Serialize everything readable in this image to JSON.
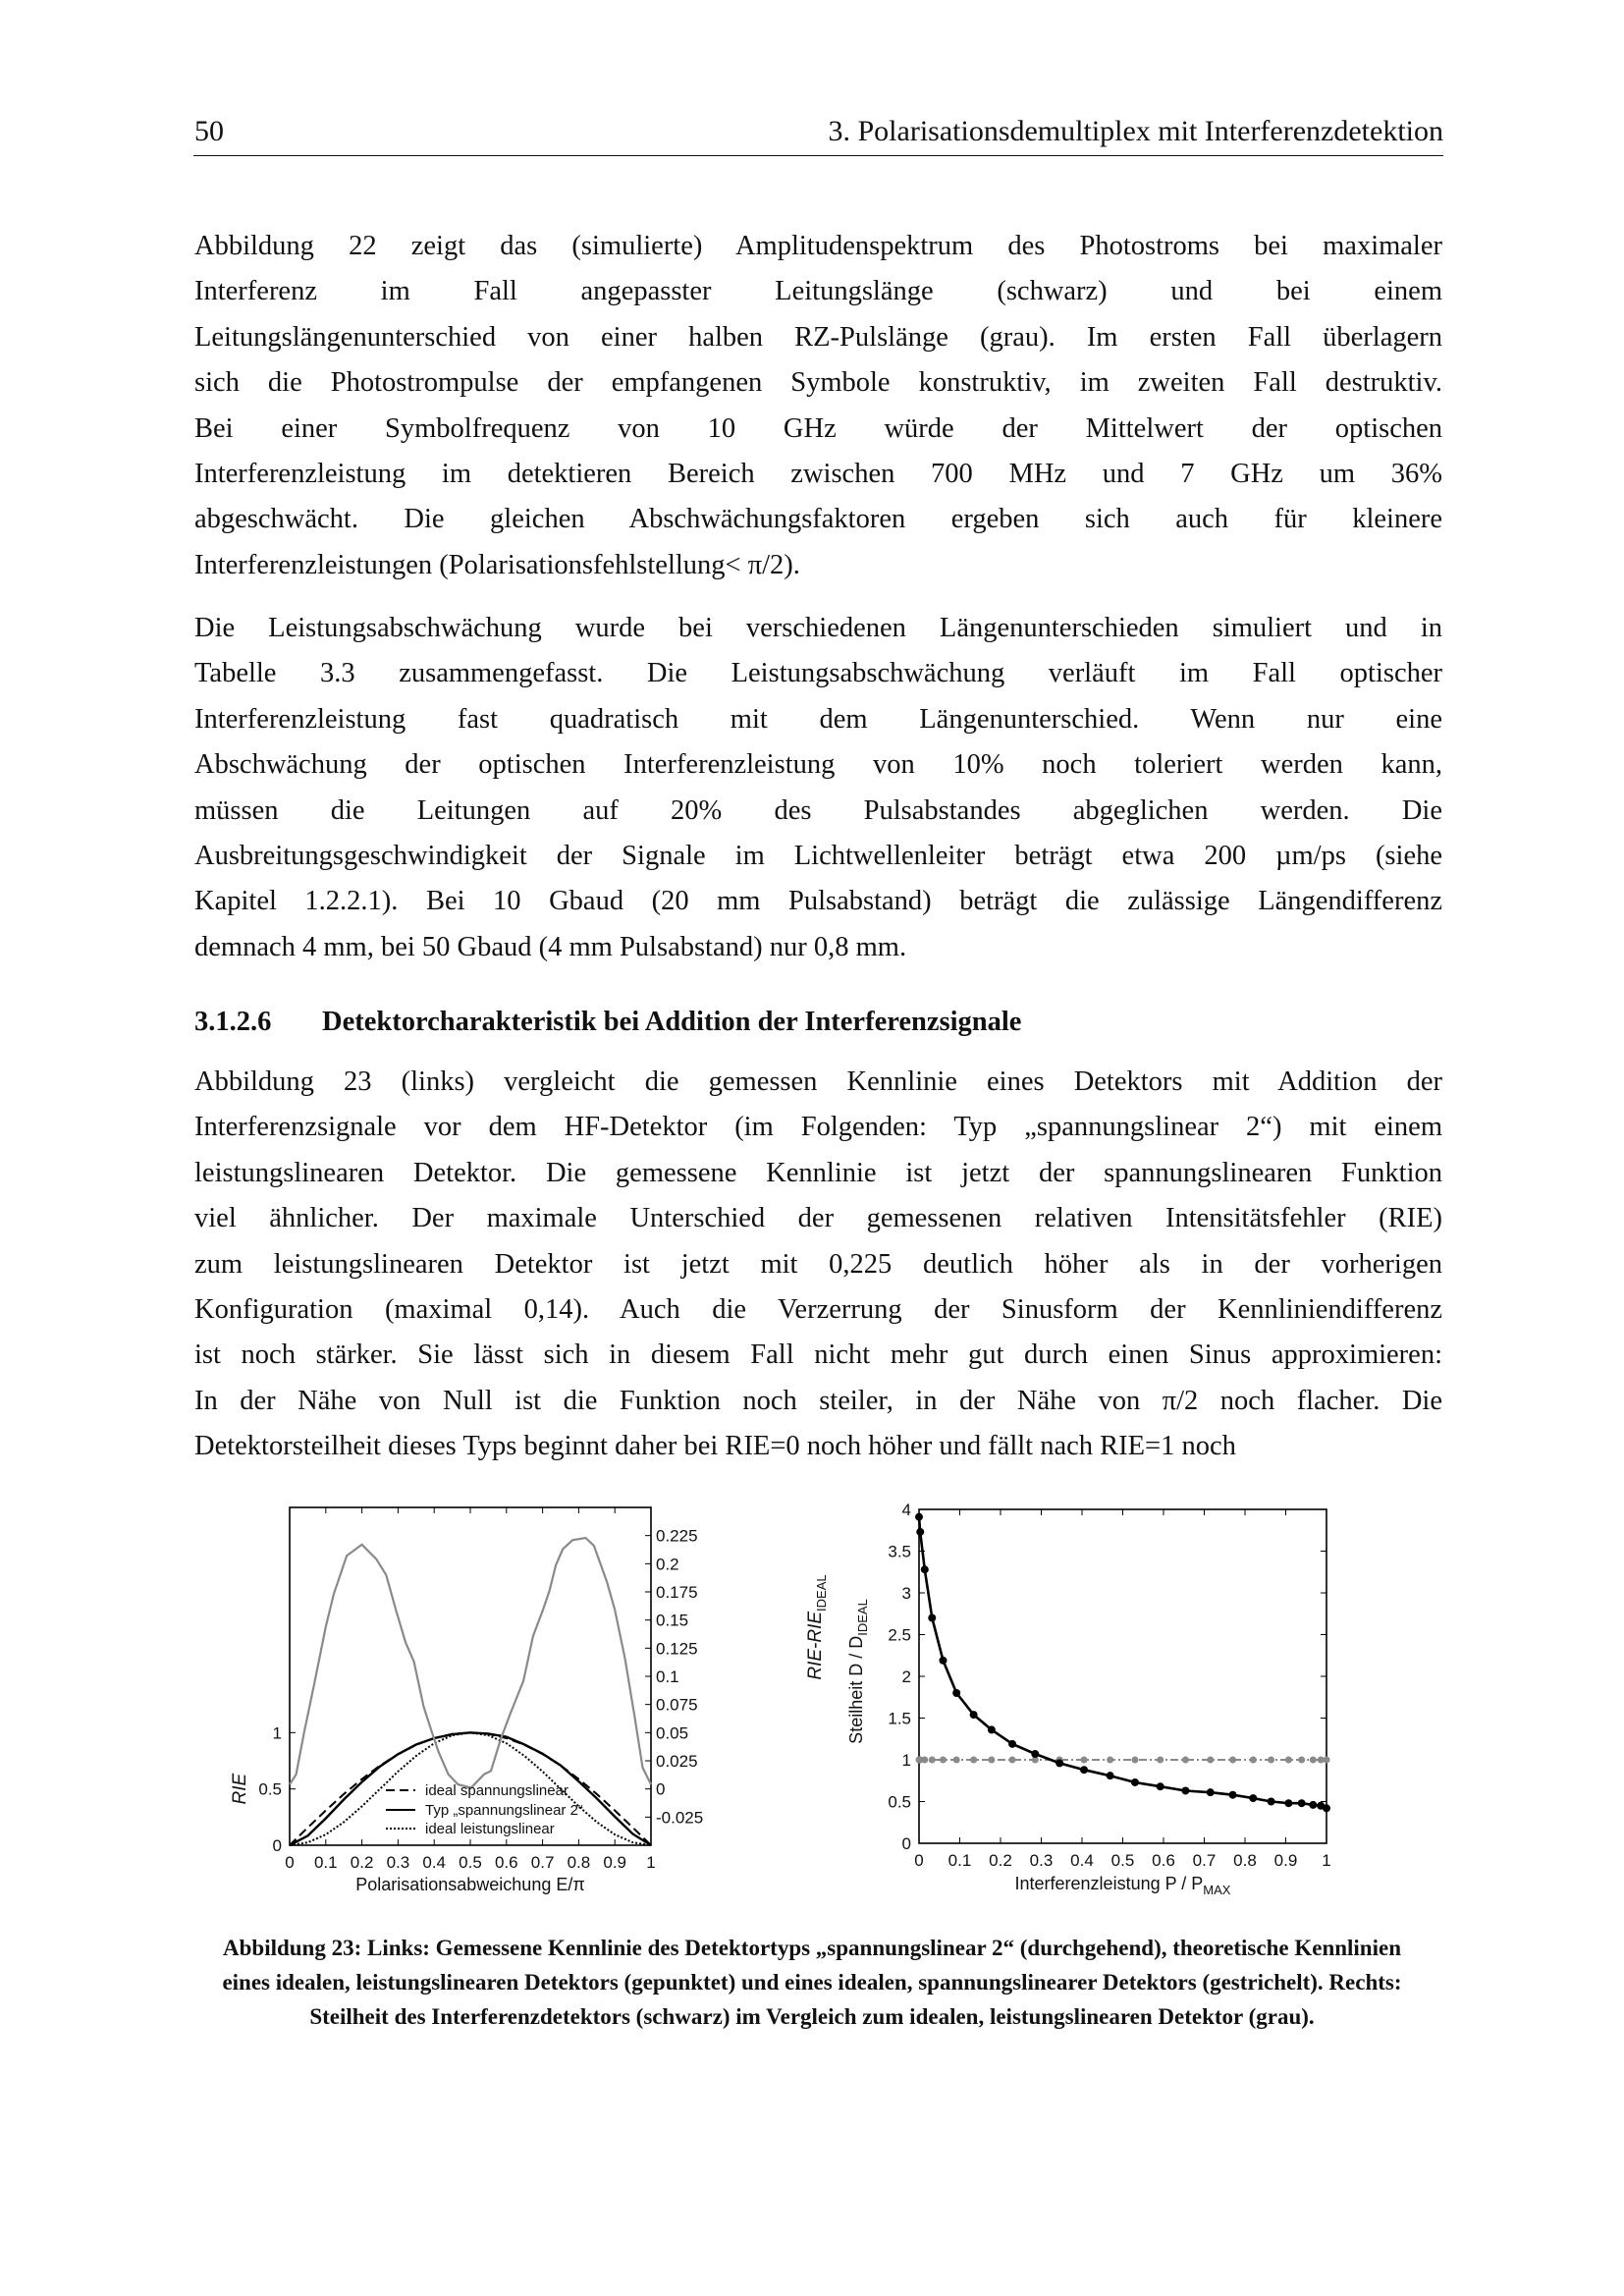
{
  "header": {
    "page_number": "50",
    "chapter_title": "3. Polarisationsdemultiplex mit Interferenzdetektion"
  },
  "paragraph1": [
    "Abbildung 22 zeigt das (simulierte) Amplitudenspektrum des Photostroms bei maximaler",
    "Interferenz im Fall angepasster Leitungslänge (schwarz) und bei einem",
    "Leitungslängenunterschied von einer halben RZ-Pulslänge (grau). Im ersten Fall überlagern",
    "sich die Photostrompulse der empfangenen Symbole konstruktiv, im zweiten Fall destruktiv.",
    "Bei einer Symbolfrequenz von 10 GHz würde der Mittelwert der optischen",
    "Interferenzleistung im detektieren Bereich zwischen 700 MHz und 7 GHz um 36%",
    "abgeschwächt. Die gleichen Abschwächungsfaktoren ergeben sich auch für kleinere",
    "Interferenzleistungen (Polarisationsfehlstellung< π/2)."
  ],
  "paragraph2": [
    "Die Leistungsabschwächung wurde bei verschiedenen Längenunterschieden simuliert und in",
    "Tabelle 3.3 zusammengefasst. Die Leistungsabschwächung verläuft im Fall optischer",
    "Interferenzleistung fast quadratisch mit dem Längenunterschied. Wenn nur eine",
    "Abschwächung der optischen Interferenzleistung von 10% noch toleriert werden kann,",
    "müssen die Leitungen auf 20% des Pulsabstandes abgeglichen werden. Die",
    "Ausbreitungsgeschwindigkeit der Signale im Lichtwellenleiter beträgt etwa 200 µm/ps (siehe",
    "Kapitel 1.2.2.1). Bei 10 Gbaud (20 mm Pulsabstand) beträgt die zulässige Längendifferenz",
    "demnach 4 mm, bei 50 Gbaud (4 mm Pulsabstand) nur 0,8 mm."
  ],
  "section": {
    "number": "3.1.2.6",
    "title": "Detektorcharakteristik bei Addition der Interferenzsignale"
  },
  "paragraph3": [
    "Abbildung 23 (links) vergleicht die gemessen Kennlinie eines Detektors mit Addition der",
    "Interferenzsignale vor dem HF-Detektor (im Folgenden: Typ „spannungslinear 2“) mit einem",
    "leistungslinearen Detektor. Die gemessene Kennlinie ist jetzt der spannungslinearen Funktion",
    "viel ähnlicher. Der maximale Unterschied der gemessenen relativen Intensitätsfehler (RIE)",
    "zum leistungslinearen Detektor ist jetzt mit 0,225 deutlich höher als in der vorherigen",
    "Konfiguration (maximal 0,14). Auch die Verzerrung der Sinusform der Kennliniendifferenz",
    "ist noch stärker. Sie lässt sich in diesem Fall nicht mehr gut durch einen Sinus approximieren:",
    "In der Nähe von Null ist die Funktion noch steiler, in der Nähe von π/2 noch flacher. Die",
    "Detektorsteilheit dieses Typs beginnt daher bei RIE=0 noch höher und fällt nach RIE=1 noch"
  ],
  "caption": "Abbildung 23: Links: Gemessene Kennlinie des Detektortyps „spannungslinear 2“ (durchgehend), theoretische Kennlinien eines idealen, leistungslinearen Detektors (gepunktet) und eines idealen, spannungslinearer Detektors (gestrichelt). Rechts: Steilheit des Interferenzdetektors (schwarz) im Vergleich zum idealen, leistungslinearen Detektor (grau).",
  "chart_data": [
    {
      "type": "line",
      "xlabel": "Polarisationsabweichung E/π",
      "ylabel": "RIE",
      "ylabel_right": "RIE-RIE",
      "ylabel_right_subscript": "IDEAL",
      "xlim": [
        0,
        1
      ],
      "ylim": [
        0,
        3
      ],
      "ylim_right": [
        -0.05,
        0.25
      ],
      "xticks": [
        "0",
        "0.1",
        "0.2",
        "0.3",
        "0.4",
        "0.5",
        "0.6",
        "0.7",
        "0.8",
        "0.9",
        "1"
      ],
      "yticks": [
        "0",
        "0.5",
        "1"
      ],
      "yticks_right": [
        "-0.025",
        "0",
        "0.025",
        "0.05",
        "0.075",
        "0.1",
        "0.125",
        "0.15",
        "0.175",
        "0.2",
        "0.225"
      ],
      "grid": false,
      "legend_placement": "bottom-center",
      "x": [
        0,
        0.05,
        0.1,
        0.15,
        0.2,
        0.25,
        0.3,
        0.35,
        0.4,
        0.45,
        0.5,
        0.55,
        0.6,
        0.65,
        0.7,
        0.75,
        0.8,
        0.85,
        0.9,
        0.95,
        1
      ],
      "series": [
        {
          "name": "ideal spannungslinear",
          "style": "dashed",
          "color": "#000000",
          "axis": "left",
          "values": [
            0,
            0.156,
            0.309,
            0.454,
            0.588,
            0.707,
            0.809,
            0.891,
            0.951,
            0.988,
            1,
            0.988,
            0.951,
            0.891,
            0.809,
            0.707,
            0.588,
            0.454,
            0.309,
            0.156,
            0
          ]
        },
        {
          "name": "Typ „spannungslinear 2“",
          "style": "solid",
          "color": "#000000",
          "axis": "left",
          "values": [
            0,
            0.084,
            0.239,
            0.406,
            0.562,
            0.7,
            0.808,
            0.894,
            0.951,
            0.985,
            1.0,
            0.991,
            0.963,
            0.894,
            0.813,
            0.709,
            0.567,
            0.416,
            0.254,
            0.099,
            0
          ]
        },
        {
          "name": "ideal leistungslinear",
          "style": "dotted",
          "color": "#000000",
          "axis": "left",
          "values": [
            0,
            0.024,
            0.095,
            0.206,
            0.345,
            0.5,
            0.655,
            0.794,
            0.905,
            0.976,
            1,
            0.976,
            0.905,
            0.794,
            0.655,
            0.5,
            0.345,
            0.206,
            0.095,
            0.024,
            0
          ]
        },
        {
          "style": "solid",
          "color": "#8a8a8a",
          "axis": "right",
          "x": [
            0,
            0.018,
            0.04,
            0.068,
            0.1,
            0.122,
            0.158,
            0.2,
            0.24,
            0.267,
            0.294,
            0.321,
            0.344,
            0.371,
            0.394,
            0.412,
            0.439,
            0.466,
            0.502,
            0.538,
            0.557,
            0.584,
            0.611,
            0.647,
            0.674,
            0.701,
            0.719,
            0.737,
            0.756,
            0.783,
            0.819,
            0.842,
            0.878,
            0.9,
            0.928,
            0.955,
            0.977,
            1
          ],
          "values": [
            0.004,
            0.013,
            0.05,
            0.093,
            0.144,
            0.173,
            0.207,
            0.217,
            0.204,
            0.19,
            0.159,
            0.13,
            0.113,
            0.073,
            0.05,
            0.033,
            0.013,
            0.004,
            0.001,
            0.013,
            0.016,
            0.044,
            0.067,
            0.096,
            0.136,
            0.159,
            0.176,
            0.199,
            0.213,
            0.221,
            0.223,
            0.216,
            0.184,
            0.159,
            0.116,
            0.064,
            0.019,
            0.004
          ]
        }
      ]
    },
    {
      "type": "line",
      "xlabel": "Interferenzleistung P / P",
      "xlabel_subscript": "MAX",
      "ylabel": "Steilheit D / D",
      "ylabel_subscript": "IDEAL",
      "xlim": [
        0,
        1
      ],
      "ylim": [
        0,
        4
      ],
      "xticks": [
        "0",
        "0.1",
        "0.2",
        "0.3",
        "0.4",
        "0.5",
        "0.6",
        "0.7",
        "0.8",
        "0.9",
        "1"
      ],
      "yticks": [
        "0",
        "0.5",
        "1",
        "1.5",
        "2",
        "2.5",
        "3",
        "3.5",
        "4"
      ],
      "grid": false,
      "x": [
        0,
        0.003,
        0.014,
        0.032,
        0.059,
        0.092,
        0.134,
        0.178,
        0.229,
        0.285,
        0.345,
        0.405,
        0.469,
        0.53,
        0.592,
        0.654,
        0.715,
        0.77,
        0.82,
        0.864,
        0.907,
        0.939,
        0.967,
        0.986,
        1
      ],
      "series": [
        {
          "style": "solid-markers",
          "color": "#000000",
          "values": [
            3.91,
            3.73,
            3.28,
            2.7,
            2.19,
            1.8,
            1.54,
            1.36,
            1.19,
            1.07,
            0.96,
            0.88,
            0.81,
            0.73,
            0.68,
            0.63,
            0.61,
            0.58,
            0.54,
            0.5,
            0.48,
            0.48,
            0.46,
            0.45,
            0.42
          ]
        },
        {
          "style": "dash-dot-markers",
          "color": "#8a8a8a",
          "values": [
            1,
            1,
            1,
            1,
            1,
            1,
            1,
            1,
            1,
            1,
            1,
            1,
            1,
            1,
            1,
            1,
            1,
            1,
            1,
            1,
            1,
            1,
            1,
            1,
            1
          ]
        }
      ]
    }
  ]
}
